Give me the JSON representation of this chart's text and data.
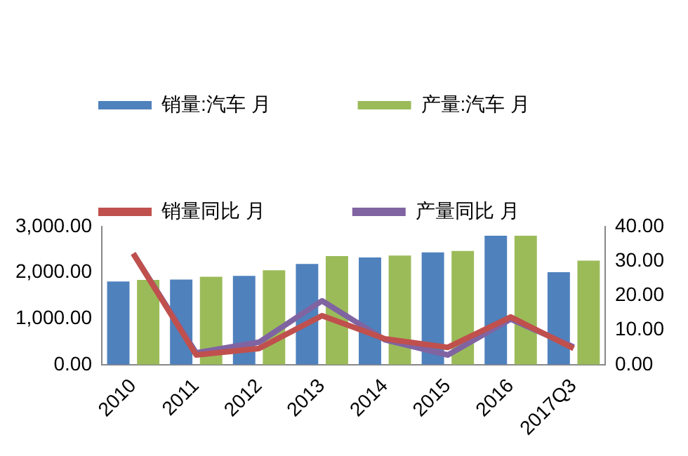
{
  "chart_data": {
    "type": "bar",
    "categories": [
      "2010",
      "2011",
      "2012",
      "2013",
      "2014",
      "2015",
      "2016",
      "2017Q3"
    ],
    "series": [
      {
        "name": "销量:汽车 月",
        "color": "#4f81bd",
        "values": [
          1806,
          1850,
          1930,
          2190,
          2330,
          2440,
          2800,
          2010
        ]
      },
      {
        "name": "产量:汽车 月",
        "color": "#9bbb59",
        "values": [
          1840,
          1910,
          2050,
          2360,
          2370,
          2470,
          2800,
          2260
        ]
      },
      {
        "name": "销量同比 月",
        "type": "line",
        "axis": "y2",
        "color": "#c0504d",
        "values": [
          32.2,
          2.8,
          4.7,
          14.2,
          7.5,
          5.0,
          13.8,
          4.7
        ]
      },
      {
        "name": "产量同比 月",
        "type": "line",
        "axis": "y2",
        "color": "#8064a2",
        "values": [
          32.2,
          3.4,
          6.5,
          18.5,
          7.2,
          2.8,
          13.2,
          5.1
        ]
      }
    ],
    "ylim": [
      0,
      3000
    ],
    "yticks": [
      {
        "value": 0,
        "label": "0.00"
      },
      {
        "value": 1000,
        "label": "1,000.00"
      },
      {
        "value": 2000,
        "label": "2,000.00"
      },
      {
        "value": 3000,
        "label": "3,000.00"
      }
    ],
    "y2lim": [
      0,
      40
    ],
    "y2ticks": [
      {
        "value": 0,
        "label": "0.00"
      },
      {
        "value": 10,
        "label": "10.00"
      },
      {
        "value": 20,
        "label": "20.00"
      },
      {
        "value": 30,
        "label": "30.00"
      },
      {
        "value": 40,
        "label": "40.00"
      }
    ],
    "legend": "top",
    "grid": false,
    "marker": "none"
  }
}
